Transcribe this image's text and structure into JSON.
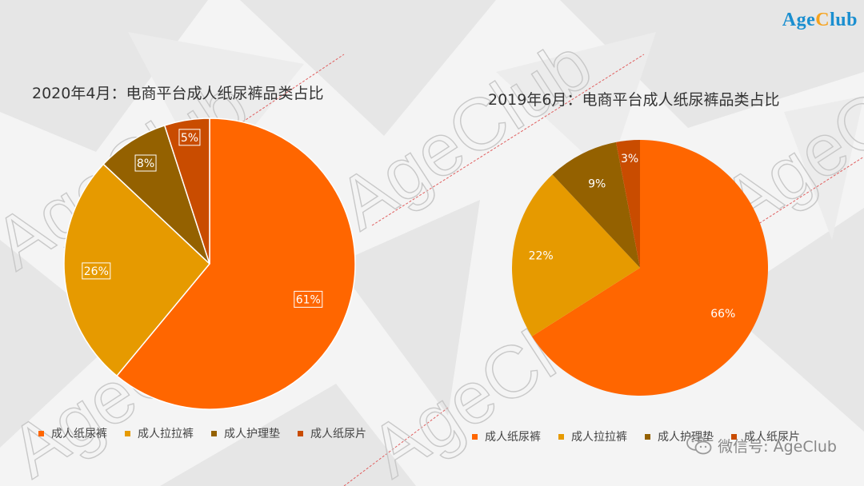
{
  "brand": {
    "logo_part1": "Age",
    "logo_part2": "C",
    "logo_part3": "lub"
  },
  "watermark": {
    "text": "AgeClub"
  },
  "footer": {
    "wechat_label": "微信号: AgeClub"
  },
  "colors": {
    "成人纸尿裤": "#ff6600",
    "成人拉拉裤": "#e69a00",
    "成人护理垫": "#946100",
    "成人纸尿片": "#c94c00"
  },
  "chart_data": [
    {
      "type": "pie",
      "title": "2020年4月：电商平台成人纸尿裤品类占比",
      "categories": [
        "成人纸尿裤",
        "成人拉拉裤",
        "成人护理垫",
        "成人纸尿片"
      ],
      "values": [
        61,
        26,
        8,
        5
      ],
      "labels": [
        "61%",
        "26%",
        "8%",
        "5%"
      ],
      "legend_position": "bottom",
      "start_angle": "12 o'clock, clockwise order: 成人纸尿裤 first"
    },
    {
      "type": "pie",
      "title": "2019年6月：电商平台成人纸尿裤品类占比",
      "categories": [
        "成人纸尿裤",
        "成人拉拉裤",
        "成人护理垫",
        "成人纸尿片"
      ],
      "values": [
        66,
        22,
        9,
        3
      ],
      "labels": [
        "66%",
        "22%",
        "9%",
        "3%"
      ],
      "legend_position": "bottom",
      "start_angle": "12 o'clock, clockwise order: 成人纸尿裤 first"
    }
  ]
}
